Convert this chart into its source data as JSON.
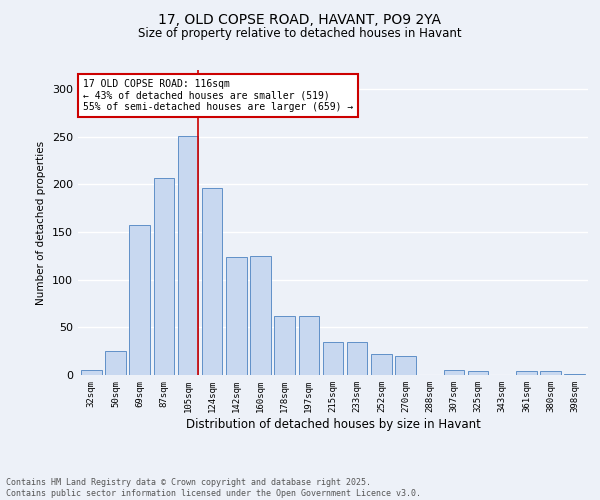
{
  "title1": "17, OLD COPSE ROAD, HAVANT, PO9 2YA",
  "title2": "Size of property relative to detached houses in Havant",
  "xlabel": "Distribution of detached houses by size in Havant",
  "ylabel": "Number of detached properties",
  "categories": [
    "32sqm",
    "50sqm",
    "69sqm",
    "87sqm",
    "105sqm",
    "124sqm",
    "142sqm",
    "160sqm",
    "178sqm",
    "197sqm",
    "215sqm",
    "233sqm",
    "252sqm",
    "270sqm",
    "288sqm",
    "307sqm",
    "325sqm",
    "343sqm",
    "361sqm",
    "380sqm",
    "398sqm"
  ],
  "values": [
    5,
    25,
    157,
    207,
    251,
    196,
    124,
    125,
    62,
    62,
    35,
    35,
    22,
    20,
    0,
    5,
    4,
    0,
    4,
    4,
    1
  ],
  "highlight_index": 4,
  "annotation_title": "17 OLD COPSE ROAD: 116sqm",
  "annotation_line1": "← 43% of detached houses are smaller (519)",
  "annotation_line2": "55% of semi-detached houses are larger (659) →",
  "bar_color": "#c8d8f0",
  "bar_edge_color": "#6090c8",
  "highlight_line_color": "#cc0000",
  "annotation_box_edge_color": "#cc0000",
  "background_color": "#edf1f8",
  "grid_color": "#ffffff",
  "ylim": [
    0,
    320
  ],
  "yticks": [
    0,
    50,
    100,
    150,
    200,
    250,
    300
  ],
  "footer1": "Contains HM Land Registry data © Crown copyright and database right 2025.",
  "footer2": "Contains public sector information licensed under the Open Government Licence v3.0."
}
